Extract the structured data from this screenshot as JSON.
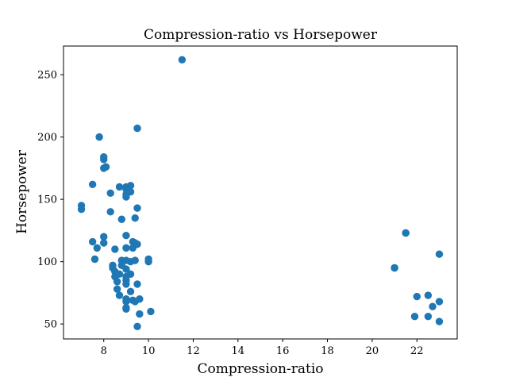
{
  "chart_data": {
    "type": "scatter",
    "title": "Compression-ratio vs Horsepower",
    "xlabel": "Compression-ratio",
    "ylabel": "Horsepower",
    "xlim": [
      6.2,
      23.8
    ],
    "ylim": [
      38,
      273
    ],
    "xticks": [
      8,
      10,
      12,
      14,
      16,
      18,
      20,
      22
    ],
    "yticks": [
      50,
      100,
      150,
      200,
      250
    ],
    "grid": false,
    "marker_color": "#1f77b4",
    "points": [
      {
        "x": 7.0,
        "y": 145
      },
      {
        "x": 7.0,
        "y": 142
      },
      {
        "x": 7.5,
        "y": 162
      },
      {
        "x": 7.5,
        "y": 116
      },
      {
        "x": 7.6,
        "y": 102
      },
      {
        "x": 7.7,
        "y": 111
      },
      {
        "x": 7.8,
        "y": 200
      },
      {
        "x": 8.0,
        "y": 184
      },
      {
        "x": 8.0,
        "y": 182
      },
      {
        "x": 8.0,
        "y": 175
      },
      {
        "x": 8.1,
        "y": 176
      },
      {
        "x": 8.0,
        "y": 120
      },
      {
        "x": 8.0,
        "y": 115
      },
      {
        "x": 8.3,
        "y": 155
      },
      {
        "x": 8.3,
        "y": 140
      },
      {
        "x": 8.4,
        "y": 97
      },
      {
        "x": 8.4,
        "y": 95
      },
      {
        "x": 8.5,
        "y": 110
      },
      {
        "x": 8.5,
        "y": 92
      },
      {
        "x": 8.5,
        "y": 88
      },
      {
        "x": 8.6,
        "y": 84
      },
      {
        "x": 8.6,
        "y": 78
      },
      {
        "x": 8.7,
        "y": 160
      },
      {
        "x": 8.7,
        "y": 73
      },
      {
        "x": 8.7,
        "y": 90
      },
      {
        "x": 8.8,
        "y": 134
      },
      {
        "x": 8.8,
        "y": 101
      },
      {
        "x": 8.8,
        "y": 97
      },
      {
        "x": 9.0,
        "y": 160
      },
      {
        "x": 9.0,
        "y": 158
      },
      {
        "x": 9.0,
        "y": 154
      },
      {
        "x": 9.0,
        "y": 152
      },
      {
        "x": 9.0,
        "y": 121
      },
      {
        "x": 9.0,
        "y": 111
      },
      {
        "x": 9.0,
        "y": 101
      },
      {
        "x": 9.0,
        "y": 94
      },
      {
        "x": 9.0,
        "y": 88
      },
      {
        "x": 9.0,
        "y": 85
      },
      {
        "x": 9.0,
        "y": 82
      },
      {
        "x": 9.0,
        "y": 70
      },
      {
        "x": 9.0,
        "y": 68
      },
      {
        "x": 9.0,
        "y": 63
      },
      {
        "x": 9.0,
        "y": 62
      },
      {
        "x": 9.2,
        "y": 161
      },
      {
        "x": 9.2,
        "y": 156
      },
      {
        "x": 9.2,
        "y": 100
      },
      {
        "x": 9.2,
        "y": 90
      },
      {
        "x": 9.2,
        "y": 76
      },
      {
        "x": 9.3,
        "y": 116
      },
      {
        "x": 9.3,
        "y": 111
      },
      {
        "x": 9.3,
        "y": 69
      },
      {
        "x": 9.4,
        "y": 135
      },
      {
        "x": 9.4,
        "y": 115
      },
      {
        "x": 9.4,
        "y": 101
      },
      {
        "x": 9.4,
        "y": 68
      },
      {
        "x": 9.5,
        "y": 207
      },
      {
        "x": 9.5,
        "y": 143
      },
      {
        "x": 9.5,
        "y": 114
      },
      {
        "x": 9.5,
        "y": 82
      },
      {
        "x": 9.5,
        "y": 48
      },
      {
        "x": 9.6,
        "y": 58
      },
      {
        "x": 9.6,
        "y": 70
      },
      {
        "x": 10.0,
        "y": 102
      },
      {
        "x": 10.0,
        "y": 100
      },
      {
        "x": 10.1,
        "y": 60
      },
      {
        "x": 11.5,
        "y": 262
      },
      {
        "x": 21.0,
        "y": 95
      },
      {
        "x": 21.0,
        "y": 95
      },
      {
        "x": 21.5,
        "y": 123
      },
      {
        "x": 21.5,
        "y": 123
      },
      {
        "x": 21.9,
        "y": 56
      },
      {
        "x": 22.0,
        "y": 72
      },
      {
        "x": 22.5,
        "y": 73
      },
      {
        "x": 22.5,
        "y": 56
      },
      {
        "x": 22.7,
        "y": 64
      },
      {
        "x": 23.0,
        "y": 106
      },
      {
        "x": 23.0,
        "y": 68
      },
      {
        "x": 23.0,
        "y": 52
      }
    ]
  }
}
